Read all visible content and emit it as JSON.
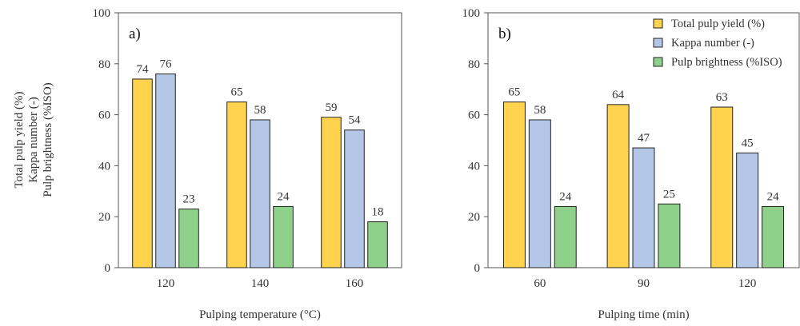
{
  "figure": {
    "shared_ylabel": [
      "Total pulp yield (%)",
      "Kappa number (-)",
      "Pulp brightness (%ISO)"
    ]
  },
  "colors": {
    "series": [
      "#FFD34E",
      "#B4C7E7",
      "#8FD18B"
    ],
    "stroke": "#222222"
  },
  "chart_data": [
    {
      "type": "bar",
      "panel_label": "a)",
      "xlabel": "Pulping temperature (°C)",
      "categories": [
        "120",
        "140",
        "160"
      ],
      "series": [
        {
          "name": "Total pulp yield (%)",
          "values": [
            74,
            65,
            59
          ]
        },
        {
          "name": "Kappa number (-)",
          "values": [
            76,
            58,
            54
          ]
        },
        {
          "name": "Pulp brightness (%ISO)",
          "values": [
            23,
            24,
            18
          ]
        }
      ],
      "ylim": [
        0,
        100
      ],
      "yticks": [
        0,
        20,
        40,
        60,
        80,
        100
      ],
      "legend": false,
      "grid": false
    },
    {
      "type": "bar",
      "panel_label": "b)",
      "xlabel": "Pulping time (min)",
      "categories": [
        "60",
        "90",
        "120"
      ],
      "series": [
        {
          "name": "Total pulp yield (%)",
          "values": [
            65,
            64,
            63
          ]
        },
        {
          "name": "Kappa number (-)",
          "values": [
            58,
            47,
            45
          ]
        },
        {
          "name": "Pulp brightness (%ISO)",
          "values": [
            24,
            25,
            24
          ]
        }
      ],
      "ylim": [
        0,
        100
      ],
      "yticks": [
        0,
        20,
        40,
        60,
        80,
        100
      ],
      "legend": "top-right",
      "grid": false
    }
  ]
}
